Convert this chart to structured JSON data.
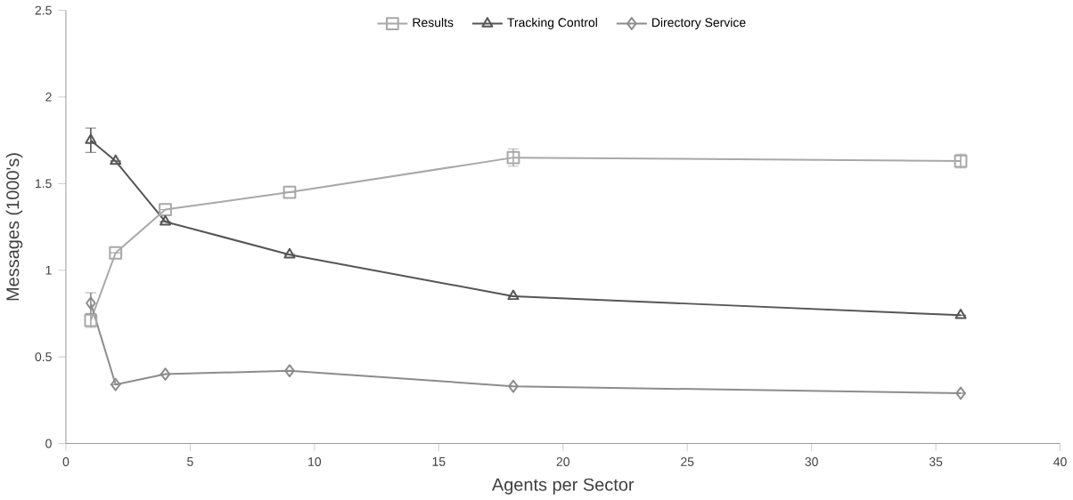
{
  "chart_data": {
    "type": "line",
    "xlabel": "Agents per Sector",
    "ylabel": "Messages (1000's)",
    "x": [
      1,
      2,
      4,
      9,
      18,
      36
    ],
    "series": [
      {
        "name": "Results",
        "color": "#a8a8a8",
        "marker": "square",
        "values": [
          0.71,
          1.1,
          1.35,
          1.45,
          1.65,
          1.63
        ],
        "errors": [
          0.04,
          null,
          null,
          null,
          0.05,
          0.04
        ]
      },
      {
        "name": "Tracking Control",
        "color": "#555555",
        "marker": "triangle",
        "values": [
          1.75,
          1.63,
          1.28,
          1.09,
          0.85,
          0.74
        ],
        "errors": [
          0.07,
          null,
          null,
          null,
          null,
          null
        ]
      },
      {
        "name": "Directory Service",
        "color": "#8c8c8c",
        "marker": "diamond",
        "values": [
          0.81,
          0.34,
          0.4,
          0.42,
          0.33,
          0.29
        ],
        "errors": [
          0.06,
          null,
          null,
          null,
          null,
          null
        ]
      }
    ],
    "xlim": [
      0,
      40
    ],
    "xticks": [
      0,
      5,
      10,
      15,
      20,
      25,
      30,
      35,
      40
    ],
    "ylim": [
      0,
      2.5
    ],
    "yticks": [
      0,
      0.5,
      1,
      1.5,
      2,
      2.5
    ],
    "legend": "top",
    "grid": false
  }
}
